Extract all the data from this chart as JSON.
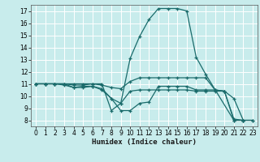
{
  "bg_color": "#c8ecec",
  "line_color": "#1a6b6b",
  "grid_color": "#ffffff",
  "xlabel": "Humidex (Indice chaleur)",
  "xlim": [
    -0.5,
    23.5
  ],
  "ylim": [
    7.5,
    17.5
  ],
  "xticks": [
    0,
    1,
    2,
    3,
    4,
    5,
    6,
    7,
    8,
    9,
    10,
    11,
    12,
    13,
    14,
    15,
    16,
    17,
    18,
    19,
    20,
    21,
    22,
    23
  ],
  "yticks": [
    8,
    9,
    10,
    11,
    12,
    13,
    14,
    15,
    16,
    17
  ],
  "lines": [
    {
      "x": [
        0,
        1,
        2,
        3,
        4,
        5,
        6,
        7,
        8,
        9,
        10,
        11,
        12,
        13,
        14,
        15,
        16,
        17,
        18,
        21,
        22
      ],
      "y": [
        11,
        11,
        11,
        11,
        11,
        11,
        11,
        11,
        8.8,
        9.4,
        13.1,
        14.9,
        16.3,
        17.2,
        17.2,
        17.2,
        17.0,
        13.2,
        11.8,
        8.0,
        8.0
      ]
    },
    {
      "x": [
        0,
        1,
        2,
        3,
        4,
        5,
        6,
        7,
        8,
        9,
        10,
        11,
        12,
        13,
        14,
        15,
        16,
        17,
        18,
        19,
        20,
        21,
        22
      ],
      "y": [
        11,
        11,
        11,
        11,
        10.9,
        10.9,
        11.0,
        10.9,
        10.7,
        10.6,
        11.2,
        11.5,
        11.5,
        11.5,
        11.5,
        11.5,
        11.5,
        11.5,
        11.5,
        10.5,
        10.4,
        8.0,
        8.0
      ]
    },
    {
      "x": [
        0,
        1,
        2,
        3,
        4,
        5,
        6,
        7,
        8,
        9,
        10,
        11,
        12,
        13,
        14,
        15,
        16,
        17,
        18,
        19,
        20,
        21,
        22,
        23
      ],
      "y": [
        11,
        11,
        11,
        10.9,
        10.7,
        10.8,
        10.8,
        10.6,
        9.8,
        9.4,
        10.4,
        10.5,
        10.5,
        10.5,
        10.5,
        10.5,
        10.5,
        10.4,
        10.4,
        10.4,
        10.4,
        9.8,
        8.0,
        8.0
      ]
    },
    {
      "x": [
        0,
        1,
        2,
        3,
        4,
        5,
        6,
        7,
        8,
        9,
        10,
        11,
        12,
        13,
        14,
        15,
        16,
        17,
        18,
        19,
        20,
        21,
        22,
        23
      ],
      "y": [
        11,
        11,
        11,
        11,
        10.7,
        10.7,
        10.8,
        10.5,
        9.8,
        8.8,
        8.8,
        9.4,
        9.5,
        10.8,
        10.8,
        10.8,
        10.8,
        10.5,
        10.5,
        10.5,
        10.4,
        8.1,
        8.0,
        8.0
      ]
    }
  ]
}
